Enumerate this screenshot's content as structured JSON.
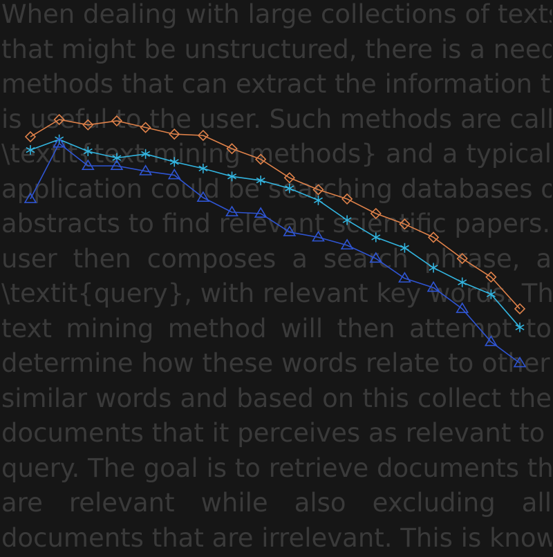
{
  "background_text": {
    "lines": [
      "When dealing with large collections of texts",
      "that might be unstructured, there is a need for",
      "methods that can extract the information that",
      "is useful to the user. Such methods are called",
      "\\textit{text mining methods} and a typical",
      "application could be searching databases of",
      "abstracts to find relevant scientific papers. The",
      "user then composes a search phrase, a",
      "\\textit{query}, with relevant key words. The",
      "text mining method will then attempt to",
      "determine how these words relate to other,",
      "similar words and based on this collect the",
      "documents that it perceives as relevant to the",
      "query. The goal is to retrieve documents that",
      "are relevant while also excluding all",
      "documents that are irrelevant. This is known as"
    ],
    "color": "#3a3a3a"
  },
  "chart_data": {
    "type": "line",
    "title": "",
    "xlabel": "",
    "ylabel": "",
    "grid": false,
    "legend": "none",
    "x": [
      1,
      2,
      3,
      4,
      5,
      6,
      7,
      8,
      9,
      10,
      11,
      12,
      13,
      14,
      15,
      16,
      17,
      18
    ],
    "xlim": [
      1,
      18
    ],
    "ylim": [
      0,
      100
    ],
    "series": [
      {
        "marker": "diamond",
        "color": "#e0824a",
        "values": [
          93.5,
          100,
          98,
          99.5,
          97,
          94.5,
          94,
          89,
          85,
          78,
          73.5,
          70,
          64.5,
          60.5,
          55.5,
          47.5,
          40.5,
          28.5
        ]
      },
      {
        "marker": "asterisk",
        "color": "#33b5e0",
        "values": [
          88.5,
          92.5,
          88,
          85.5,
          87,
          84,
          81.5,
          78.5,
          77,
          74,
          69.5,
          62,
          55.5,
          51.5,
          44,
          38.5,
          34,
          21.5
        ]
      },
      {
        "marker": "triangle",
        "color": "#2f55d4",
        "values": [
          70,
          91,
          82.5,
          82.5,
          80.5,
          79,
          70.5,
          65,
          64.5,
          57.5,
          55.5,
          52.5,
          47.5,
          40,
          36.5,
          28.5,
          16,
          8
        ]
      }
    ]
  }
}
